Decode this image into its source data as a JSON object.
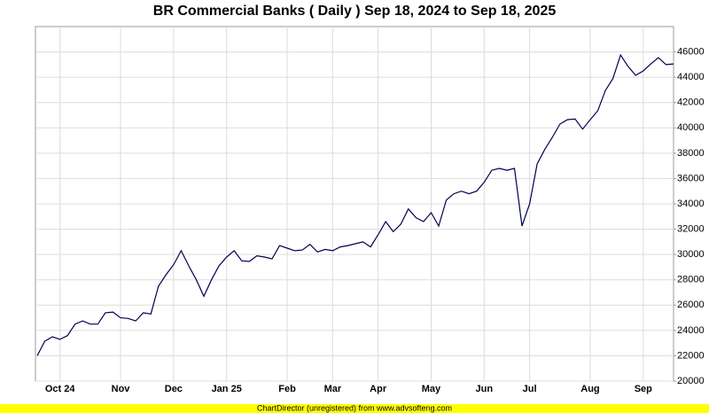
{
  "chart_data": {
    "type": "line",
    "title": "BR Commercial Banks ( Daily ) Sep 18, 2024 to Sep 18, 2025",
    "footer": "ChartDirector (unregistered) from www.advsofteng.com",
    "categories": [
      null,
      null,
      null,
      "Oct 24",
      null,
      null,
      null,
      null,
      null,
      null,
      null,
      "Nov",
      null,
      null,
      null,
      null,
      null,
      null,
      "Dec",
      null,
      null,
      null,
      null,
      null,
      null,
      "Jan 25",
      null,
      null,
      null,
      null,
      null,
      null,
      null,
      "Feb",
      null,
      null,
      null,
      null,
      null,
      "Mar",
      null,
      null,
      null,
      null,
      null,
      "Apr",
      null,
      null,
      null,
      null,
      null,
      null,
      "May",
      null,
      null,
      null,
      null,
      null,
      null,
      "Jun",
      null,
      null,
      null,
      null,
      null,
      "Jul",
      null,
      null,
      null,
      null,
      null,
      null,
      null,
      "Aug",
      null,
      null,
      null,
      null,
      null,
      null,
      "Sep",
      null,
      null,
      null,
      null
    ],
    "series": [
      {
        "color": "#000050",
        "values": [
          22000,
          23150,
          23500,
          23300,
          23600,
          24500,
          24750,
          24500,
          24500,
          25400,
          25450,
          25000,
          24950,
          24750,
          25400,
          25300,
          27500,
          28400,
          29200,
          30300,
          29100,
          28000,
          26700,
          28000,
          29100,
          29800,
          30300,
          29500,
          29450,
          29900,
          29800,
          29650,
          30700,
          30500,
          30300,
          30350,
          30800,
          30200,
          30400,
          30300,
          30600,
          30700,
          30850,
          31000,
          30600,
          31550,
          32600,
          31800,
          32400,
          33600,
          32900,
          32600,
          33300,
          32250,
          34300,
          34800,
          35000,
          34800,
          35000,
          35700,
          36650,
          36800,
          36650,
          36800,
          32250,
          34000,
          37150,
          38300,
          39250,
          40300,
          40650,
          40700,
          39900,
          40650,
          41350,
          42950,
          43900,
          45750,
          44850,
          44150,
          44500,
          45050,
          45550,
          45000,
          45050
        ]
      }
    ],
    "ylim": [
      20000,
      48000
    ],
    "yticks": [
      20000,
      22000,
      24000,
      26000,
      28000,
      30000,
      32000,
      34000,
      36000,
      38000,
      40000,
      42000,
      44000,
      46000
    ],
    "grid": true
  }
}
